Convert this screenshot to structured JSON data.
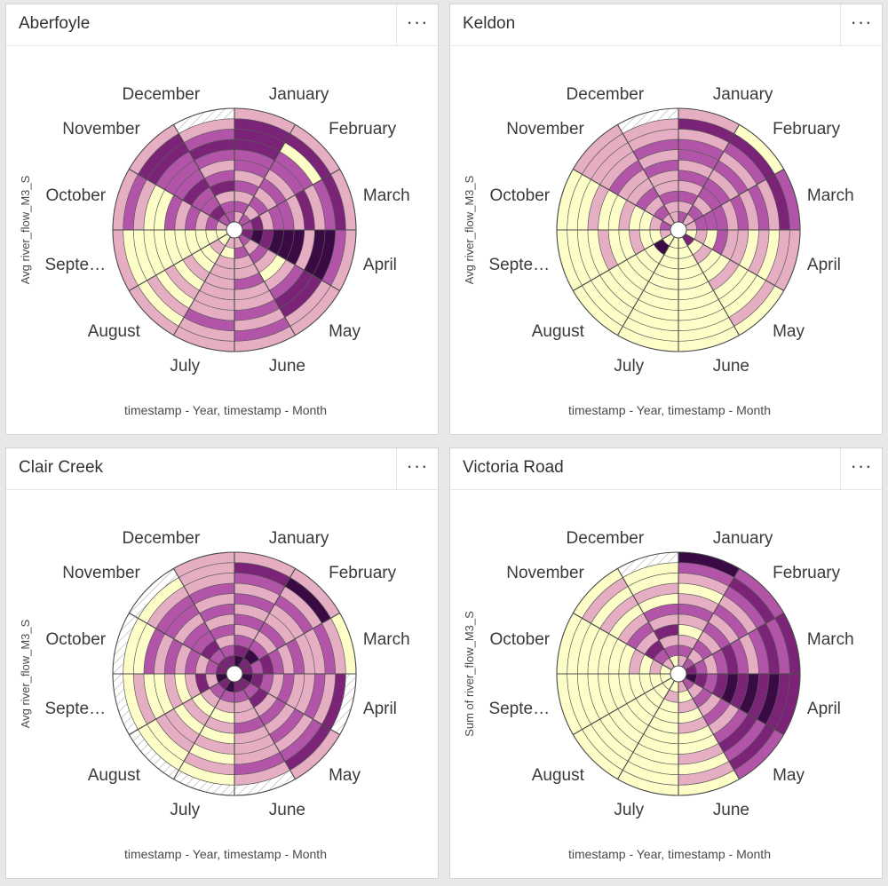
{
  "palette": [
    "#fdfdc8",
    "#e6aec3",
    "#b255a8",
    "#7b2477",
    "#3a0a45"
  ],
  "hatch_color": "#b0b0b0",
  "panels": [
    {
      "title": "Aberfoyle",
      "menu_icon": "ellipsis-icon",
      "menu_label": "···",
      "ylabel": "Avg river_flow_M3_S",
      "xlabel": "timestamp - Year, timestamp - Month",
      "chart_data": {
        "type": "heatmap",
        "layout": "radial",
        "months": [
          "January",
          "February",
          "March",
          "April",
          "May",
          "June",
          "July",
          "August",
          "Septe…",
          "October",
          "November",
          "December"
        ],
        "rings": 11,
        "level_matrix": [
          [
            1,
            2,
            1,
            2,
            1,
            2,
            2,
            3,
            3,
            3,
            1
          ],
          [
            2,
            1,
            2,
            1,
            2,
            1,
            2,
            2,
            0,
            3,
            1
          ],
          [
            2,
            3,
            1,
            2,
            2,
            1,
            3,
            1,
            2,
            3,
            1
          ],
          [
            3,
            4,
            3,
            4,
            4,
            4,
            1,
            4,
            4,
            2,
            1
          ],
          [
            2,
            1,
            2,
            1,
            0,
            1,
            2,
            3,
            3,
            1,
            1
          ],
          [
            1,
            2,
            1,
            1,
            2,
            1,
            1,
            2,
            1,
            2,
            1
          ],
          [
            1,
            0,
            1,
            1,
            1,
            1,
            1,
            1,
            2,
            1,
            1
          ],
          [
            0,
            1,
            0,
            0,
            1,
            0,
            1,
            0,
            1,
            0,
            1
          ],
          [
            0,
            0,
            0,
            0,
            0,
            0,
            0,
            0,
            0,
            0,
            1
          ],
          [
            1,
            2,
            1,
            2,
            1,
            2,
            0,
            0,
            1,
            2,
            1
          ],
          [
            2,
            3,
            2,
            2,
            3,
            2,
            2,
            2,
            3,
            3,
            1
          ],
          [
            2,
            2,
            1,
            3,
            2,
            1,
            2,
            3,
            2,
            1,
            -1
          ]
        ]
      }
    },
    {
      "title": "Keldon",
      "menu_icon": "ellipsis-icon",
      "menu_label": "···",
      "ylabel": "Avg river_flow_M3_S",
      "xlabel": "timestamp - Year, timestamp - Month",
      "chart_data": {
        "type": "heatmap",
        "layout": "radial",
        "months": [
          "January",
          "February",
          "March",
          "April",
          "May",
          "June",
          "July",
          "August",
          "Septe…",
          "October",
          "November",
          "December"
        ],
        "rings": 11,
        "level_matrix": [
          [
            2,
            1,
            2,
            1,
            2,
            1,
            2,
            2,
            1,
            3,
            1
          ],
          [
            1,
            2,
            1,
            2,
            2,
            1,
            2,
            1,
            2,
            3,
            0
          ],
          [
            1,
            2,
            2,
            2,
            1,
            2,
            1,
            2,
            1,
            3,
            2
          ],
          [
            0,
            1,
            0,
            2,
            1,
            1,
            0,
            1,
            0,
            1,
            1
          ],
          [
            3,
            0,
            1,
            0,
            0,
            1,
            0,
            0,
            0,
            1,
            0
          ],
          [
            0,
            0,
            0,
            0,
            0,
            0,
            0,
            0,
            0,
            0,
            0
          ],
          [
            0,
            0,
            0,
            0,
            0,
            0,
            0,
            0,
            0,
            0,
            0
          ],
          [
            0,
            4,
            0,
            0,
            0,
            0,
            0,
            0,
            0,
            0,
            0
          ],
          [
            1,
            0,
            0,
            1,
            0,
            0,
            1,
            0,
            0,
            0,
            0
          ],
          [
            2,
            1,
            0,
            0,
            1,
            0,
            0,
            1,
            0,
            0,
            0
          ],
          [
            1,
            2,
            1,
            2,
            1,
            1,
            2,
            1,
            1,
            1,
            1
          ],
          [
            1,
            1,
            2,
            1,
            1,
            2,
            1,
            2,
            1,
            1,
            -1
          ]
        ]
      }
    },
    {
      "title": "Clair Creek",
      "menu_icon": "ellipsis-icon",
      "menu_label": "···",
      "ylabel": "Avg river_flow_M3_S",
      "xlabel": "timestamp - Year, timestamp - Month",
      "chart_data": {
        "type": "heatmap",
        "layout": "radial",
        "months": [
          "January",
          "February",
          "March",
          "April",
          "May",
          "June",
          "July",
          "August",
          "Septe…",
          "October",
          "November",
          "December"
        ],
        "rings": 11,
        "level_matrix": [
          [
            4,
            3,
            2,
            1,
            2,
            1,
            2,
            1,
            2,
            3,
            1
          ],
          [
            3,
            4,
            2,
            1,
            2,
            1,
            1,
            2,
            1,
            4,
            1
          ],
          [
            3,
            2,
            3,
            2,
            1,
            2,
            1,
            1,
            2,
            1,
            0
          ],
          [
            4,
            3,
            2,
            1,
            2,
            1,
            1,
            2,
            1,
            3,
            -1
          ],
          [
            3,
            2,
            3,
            1,
            2,
            1,
            2,
            1,
            2,
            3,
            1
          ],
          [
            3,
            2,
            1,
            1,
            2,
            1,
            1,
            1,
            2,
            1,
            -1
          ],
          [
            4,
            2,
            1,
            0,
            1,
            0,
            1,
            0,
            1,
            0,
            -1
          ],
          [
            3,
            2,
            1,
            0,
            1,
            0,
            1,
            1,
            0,
            0,
            -1
          ],
          [
            4,
            1,
            3,
            1,
            0,
            1,
            0,
            0,
            1,
            0,
            -1
          ],
          [
            3,
            2,
            1,
            2,
            1,
            2,
            1,
            2,
            0,
            0,
            -1
          ],
          [
            3,
            2,
            3,
            2,
            2,
            1,
            2,
            2,
            1,
            0,
            -1
          ],
          [
            3,
            2,
            1,
            2,
            1,
            2,
            1,
            2,
            1,
            1,
            1
          ]
        ]
      }
    },
    {
      "title": "Victoria Road",
      "menu_icon": "ellipsis-icon",
      "menu_label": "···",
      "ylabel": "Sum of river_flow_M3_S",
      "xlabel": "timestamp - Year, timestamp - Month",
      "chart_data": {
        "type": "heatmap",
        "layout": "radial",
        "months": [
          "January",
          "February",
          "March",
          "April",
          "May",
          "June",
          "July",
          "August",
          "Septe…",
          "October",
          "November",
          "December"
        ],
        "rings": 11,
        "level_matrix": [
          [
            1,
            2,
            1,
            0,
            1,
            2,
            1,
            0,
            1,
            2,
            4
          ],
          [
            2,
            1,
            2,
            1,
            2,
            1,
            2,
            1,
            2,
            3,
            2
          ],
          [
            3,
            2,
            1,
            2,
            3,
            2,
            1,
            2,
            3,
            2,
            3
          ],
          [
            4,
            3,
            2,
            3,
            4,
            3,
            4,
            3,
            4,
            3,
            3
          ],
          [
            2,
            1,
            2,
            1,
            2,
            1,
            2,
            3,
            2,
            3,
            2
          ],
          [
            1,
            0,
            1,
            0,
            1,
            0,
            0,
            1,
            0,
            1,
            0
          ],
          [
            0,
            1,
            0,
            0,
            0,
            0,
            0,
            0,
            0,
            0,
            0
          ],
          [
            0,
            0,
            0,
            0,
            0,
            0,
            0,
            0,
            0,
            0,
            0
          ],
          [
            0,
            0,
            0,
            0,
            0,
            0,
            0,
            0,
            0,
            0,
            0
          ],
          [
            0,
            1,
            0,
            1,
            0,
            0,
            0,
            0,
            0,
            0,
            0
          ],
          [
            1,
            2,
            3,
            1,
            2,
            1,
            0,
            1,
            0,
            1,
            0
          ],
          [
            0,
            2,
            1,
            3,
            1,
            2,
            0,
            1,
            0,
            0,
            -1
          ]
        ]
      }
    }
  ]
}
